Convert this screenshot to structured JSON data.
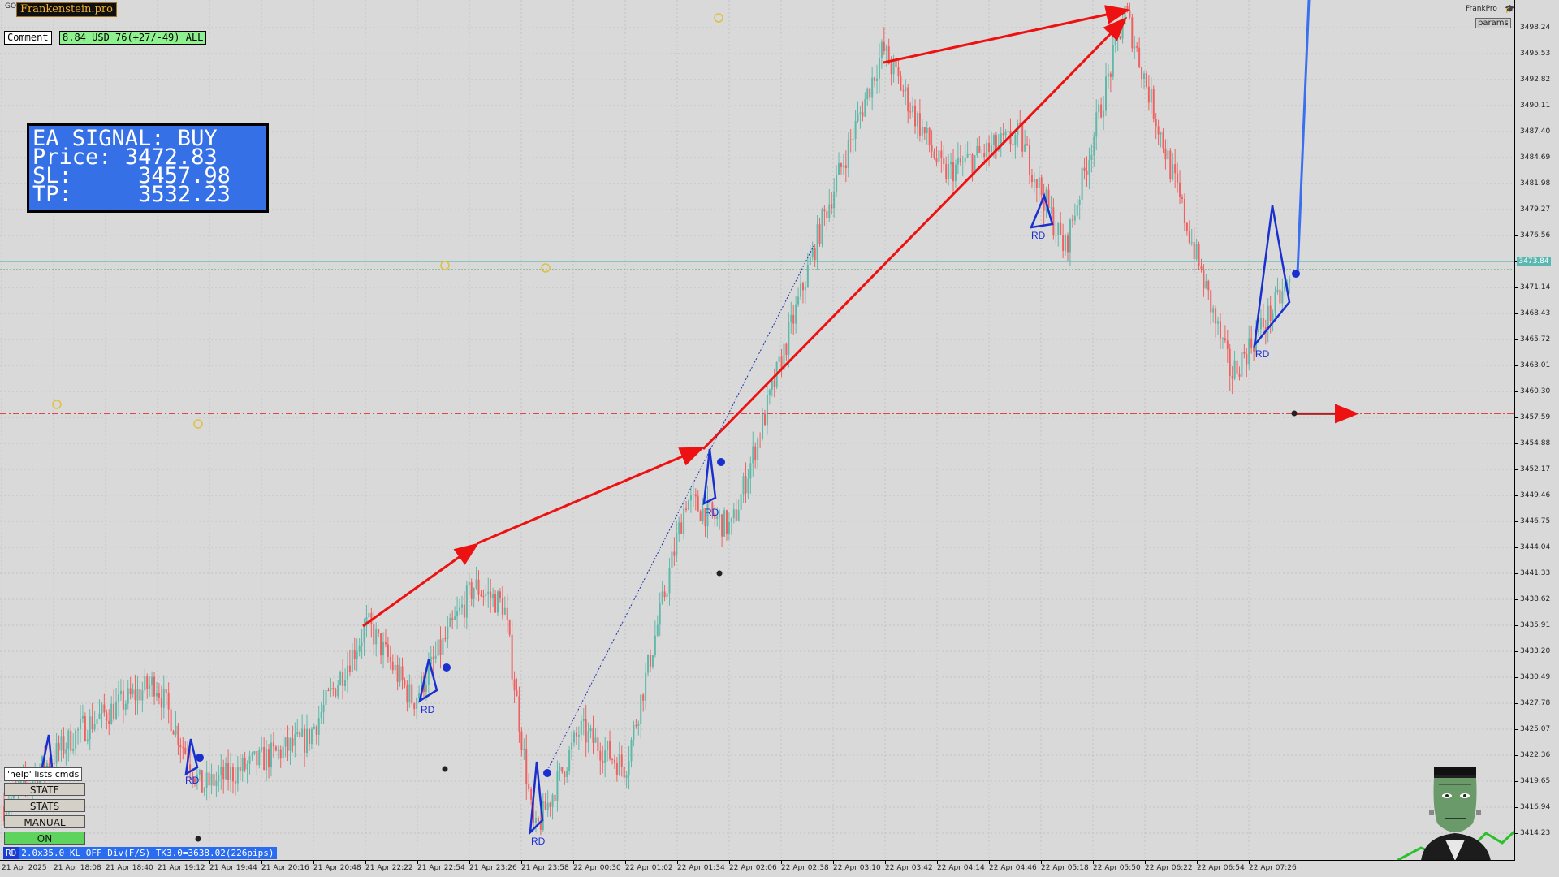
{
  "window": {
    "symbol_label": "GO",
    "brand_badge": "Frankenstein.pro",
    "brand_name": "FrankPro",
    "brand_icon": "graduation-cap-icon",
    "params_label": "params"
  },
  "comment": {
    "label": "Comment",
    "value": "8.84 USD 76(+27/-49) ALL"
  },
  "signal": {
    "title": "EA SIGNAL: BUY",
    "price_label": "Price:",
    "price": "3472.83",
    "sl_label": "SL:",
    "sl": "3457.98",
    "tp_label": "TP:",
    "tp": "3532.23"
  },
  "price_axis": {
    "ticks": [
      "3498.24",
      "3495.53",
      "3492.82",
      "3490.11",
      "3487.40",
      "3484.69",
      "3481.98",
      "3479.27",
      "3476.56",
      "3473.84",
      "3471.14",
      "3468.43",
      "3465.72",
      "3463.01",
      "3460.30",
      "3457.59",
      "3454.88",
      "3452.17",
      "3449.46",
      "3446.75",
      "3444.04",
      "3441.33",
      "3438.62",
      "3435.91",
      "3433.20",
      "3430.49",
      "3427.78",
      "3425.07",
      "3422.36",
      "3419.65",
      "3416.94",
      "3414.23"
    ],
    "current_price": "3473.84"
  },
  "time_axis": {
    "ticks": [
      "21 Apr 2025",
      "21 Apr 18:08",
      "21 Apr 18:40",
      "21 Apr 19:12",
      "21 Apr 19:44",
      "21 Apr 20:16",
      "21 Apr 20:48",
      "21 Apr 22:22",
      "21 Apr 22:54",
      "21 Apr 23:26",
      "21 Apr 23:58",
      "22 Apr 00:30",
      "22 Apr 01:02",
      "22 Apr 01:34",
      "22 Apr 02:06",
      "22 Apr 02:38",
      "22 Apr 03:10",
      "22 Apr 03:42",
      "22 Apr 04:14",
      "22 Apr 04:46",
      "22 Apr 05:18",
      "22 Apr 05:50",
      "22 Apr 06:22",
      "22 Apr 06:54",
      "22 Apr 07:26"
    ]
  },
  "panel": {
    "help_label": "'help' lists cmds",
    "state_label": "STATE",
    "stats_label": "STATS",
    "manual_label": "MANUAL",
    "on_label": "ON"
  },
  "status": {
    "tag": "RD",
    "text": "2.0x35.0 KL_OFF Div(F/S) TK3.0=3638.02(226pips)"
  },
  "markers": {
    "pattern_label": "RD"
  },
  "colors": {
    "up_candle": "#5fb8a8",
    "down_candle": "#f06060",
    "trend_arrow": "#ee1111",
    "pattern": "#1a2fd0",
    "projection": "#3a70ee",
    "price_line": "#5bb8b0",
    "sl_line": "#dd3333",
    "signal_box": "#3670e6"
  },
  "chart_data": {
    "type": "candlestick",
    "symbol": "GO",
    "timeframe_span": [
      "21 Apr 2025",
      "22 Apr 07:26"
    ],
    "ylim": [
      3412.0,
      3500.0
    ],
    "current_price": 3473.84,
    "stop_loss": 3457.98,
    "take_profit": 3532.23,
    "path_points": [
      {
        "t": 0,
        "price": 3417
      },
      {
        "t": 0.05,
        "price": 3425
      },
      {
        "t": 0.1,
        "price": 3430
      },
      {
        "t": 0.13,
        "price": 3419
      },
      {
        "t": 0.2,
        "price": 3424
      },
      {
        "t": 0.24,
        "price": 3436
      },
      {
        "t": 0.27,
        "price": 3428
      },
      {
        "t": 0.31,
        "price": 3440
      },
      {
        "t": 0.33,
        "price": 3438
      },
      {
        "t": 0.35,
        "price": 3414
      },
      {
        "t": 0.38,
        "price": 3425
      },
      {
        "t": 0.41,
        "price": 3421
      },
      {
        "t": 0.45,
        "price": 3449
      },
      {
        "t": 0.48,
        "price": 3446
      },
      {
        "t": 0.54,
        "price": 3478
      },
      {
        "t": 0.58,
        "price": 3496
      },
      {
        "t": 0.62,
        "price": 3483
      },
      {
        "t": 0.67,
        "price": 3487
      },
      {
        "t": 0.7,
        "price": 3475
      },
      {
        "t": 0.74,
        "price": 3500
      },
      {
        "t": 0.78,
        "price": 3478
      },
      {
        "t": 0.81,
        "price": 3462
      },
      {
        "t": 0.85,
        "price": 3472
      }
    ]
  }
}
